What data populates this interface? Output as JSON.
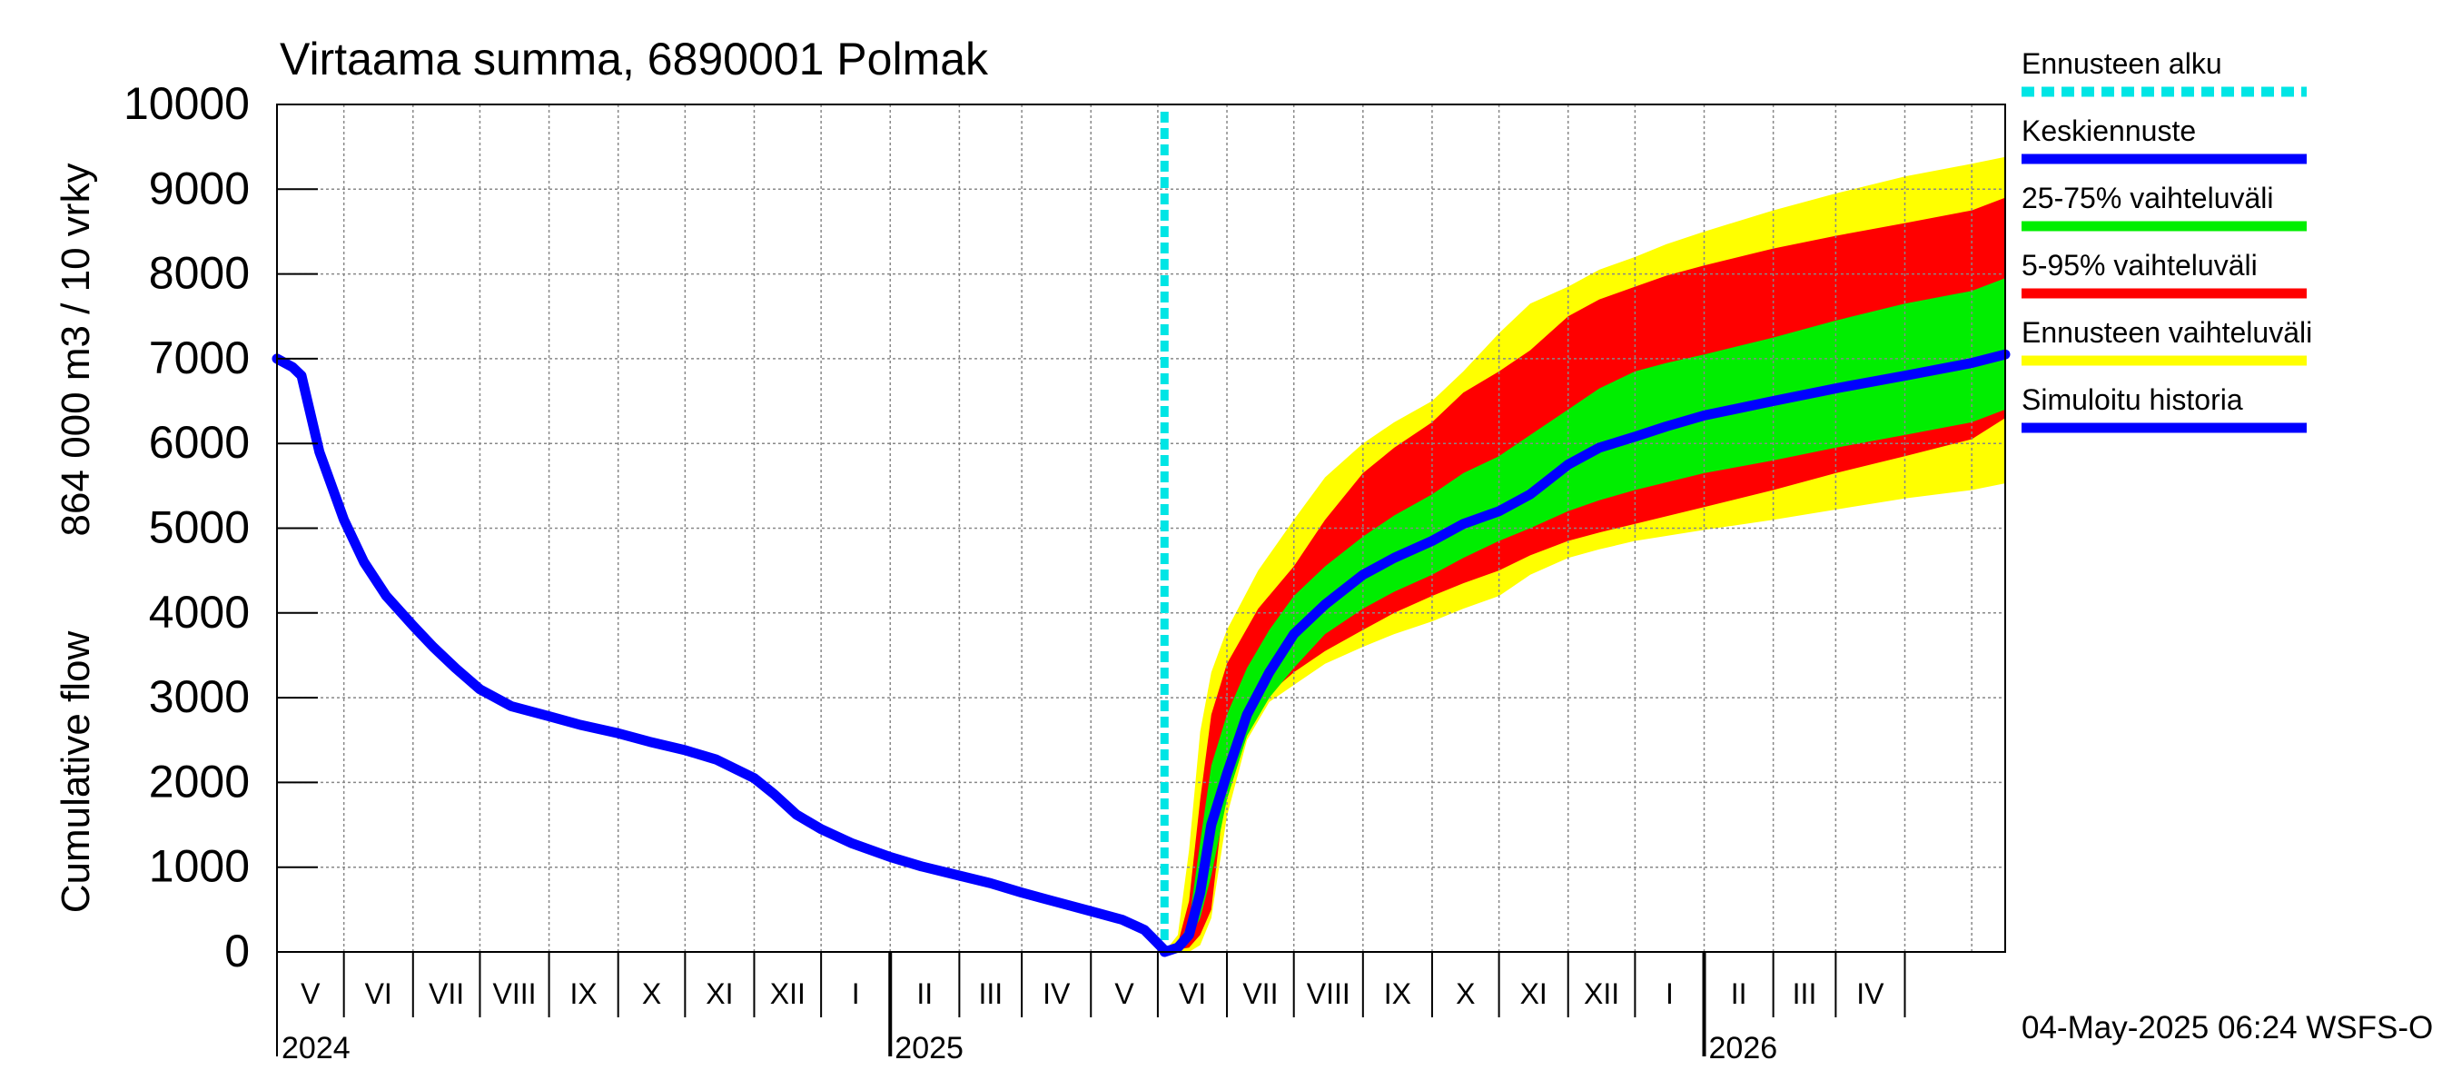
{
  "chart_data": {
    "type": "area",
    "title": "Virtaama summa, 6890001 Polmak",
    "ylabel_lines": [
      "Cumulative flow",
      "864 000 m3 / 10 vrky"
    ],
    "xlabel": "",
    "ylim": [
      0,
      10000
    ],
    "yticks": [
      0,
      1000,
      2000,
      3000,
      4000,
      5000,
      6000,
      7000,
      8000,
      9000,
      10000
    ],
    "grid": true,
    "legend_position": "right",
    "x_range": [
      "2024-04-01",
      "2026-05-16"
    ],
    "forecast_start": "2025-05-04",
    "month_labels": [
      "V",
      "VI",
      "VII",
      "VIII",
      "IX",
      "X",
      "XI",
      "XII",
      "I",
      "II",
      "III",
      "IV",
      "V",
      "VI",
      "VII",
      "VIII",
      "IX",
      "X",
      "XI",
      "XII",
      "I",
      "II",
      "III",
      "IV"
    ],
    "year_labels": [
      "2024",
      "2025",
      "2026"
    ],
    "timestamp": "04-May-2025 06:24 WSFS-O",
    "colors": {
      "forecast_start": "#00e5e5",
      "median": "#0000ff",
      "p25_75": "#00ee00",
      "p5_95": "#ff0000",
      "range": "#ffff00",
      "history": "#0000ff",
      "grid": "#888888"
    },
    "series": [
      {
        "name": "Simuloitu historia",
        "role": "history",
        "points": [
          [
            "2024-04-01",
            7000
          ],
          [
            "2024-04-08",
            6900
          ],
          [
            "2024-04-12",
            6800
          ],
          [
            "2024-04-20",
            5900
          ],
          [
            "2024-05-01",
            5100
          ],
          [
            "2024-05-10",
            4600
          ],
          [
            "2024-05-20",
            4200
          ],
          [
            "2024-06-01",
            3850
          ],
          [
            "2024-06-10",
            3600
          ],
          [
            "2024-06-20",
            3350
          ],
          [
            "2024-07-01",
            3100
          ],
          [
            "2024-07-15",
            2900
          ],
          [
            "2024-08-01",
            2780
          ],
          [
            "2024-08-15",
            2680
          ],
          [
            "2024-09-01",
            2580
          ],
          [
            "2024-09-15",
            2480
          ],
          [
            "2024-10-01",
            2380
          ],
          [
            "2024-10-15",
            2270
          ],
          [
            "2024-11-01",
            2050
          ],
          [
            "2024-11-10",
            1860
          ],
          [
            "2024-11-20",
            1620
          ],
          [
            "2024-12-01",
            1450
          ],
          [
            "2024-12-15",
            1280
          ],
          [
            "2025-01-01",
            1120
          ],
          [
            "2025-01-15",
            1010
          ],
          [
            "2025-02-01",
            900
          ],
          [
            "2025-02-15",
            810
          ],
          [
            "2025-03-01",
            700
          ],
          [
            "2025-03-15",
            600
          ],
          [
            "2025-04-01",
            480
          ],
          [
            "2025-04-15",
            380
          ],
          [
            "2025-04-25",
            260
          ],
          [
            "2025-05-04",
            20
          ]
        ]
      },
      {
        "name": "Keskiennuste",
        "role": "median",
        "points": [
          [
            "2025-05-04",
            0
          ],
          [
            "2025-05-10",
            50
          ],
          [
            "2025-05-15",
            200
          ],
          [
            "2025-05-20",
            700
          ],
          [
            "2025-05-25",
            1500
          ],
          [
            "2025-06-01",
            2100
          ],
          [
            "2025-06-10",
            2800
          ],
          [
            "2025-06-20",
            3300
          ],
          [
            "2025-07-01",
            3750
          ],
          [
            "2025-07-15",
            4100
          ],
          [
            "2025-08-01",
            4450
          ],
          [
            "2025-08-15",
            4650
          ],
          [
            "2025-09-01",
            4850
          ],
          [
            "2025-09-15",
            5050
          ],
          [
            "2025-10-01",
            5200
          ],
          [
            "2025-10-15",
            5400
          ],
          [
            "2025-11-01",
            5750
          ],
          [
            "2025-11-15",
            5950
          ],
          [
            "2025-12-01",
            6080
          ],
          [
            "2025-12-15",
            6200
          ],
          [
            "2026-01-01",
            6330
          ],
          [
            "2026-02-01",
            6500
          ],
          [
            "2026-03-01",
            6650
          ],
          [
            "2026-04-01",
            6800
          ],
          [
            "2026-05-01",
            6950
          ],
          [
            "2026-05-16",
            7050
          ]
        ]
      }
    ],
    "bands": [
      {
        "name": "Ennusteen vaihteluväli",
        "role": "range",
        "upper": [
          [
            "2025-05-04",
            0
          ],
          [
            "2025-05-10",
            200
          ],
          [
            "2025-05-15",
            1200
          ],
          [
            "2025-05-20",
            2600
          ],
          [
            "2025-05-25",
            3300
          ],
          [
            "2025-06-01",
            3800
          ],
          [
            "2025-06-15",
            4500
          ],
          [
            "2025-07-01",
            5100
          ],
          [
            "2025-07-15",
            5600
          ],
          [
            "2025-08-01",
            6000
          ],
          [
            "2025-08-15",
            6250
          ],
          [
            "2025-09-01",
            6500
          ],
          [
            "2025-09-15",
            6850
          ],
          [
            "2025-10-01",
            7300
          ],
          [
            "2025-10-15",
            7650
          ],
          [
            "2025-11-01",
            7850
          ],
          [
            "2025-11-15",
            8050
          ],
          [
            "2025-12-01",
            8200
          ],
          [
            "2025-12-15",
            8350
          ],
          [
            "2026-01-01",
            8500
          ],
          [
            "2026-02-01",
            8750
          ],
          [
            "2026-03-01",
            8950
          ],
          [
            "2026-04-01",
            9150
          ],
          [
            "2026-05-01",
            9300
          ],
          [
            "2026-05-16",
            9380
          ]
        ],
        "lower": [
          [
            "2025-05-04",
            0
          ],
          [
            "2025-05-15",
            0
          ],
          [
            "2025-05-20",
            80
          ],
          [
            "2025-05-25",
            400
          ],
          [
            "2025-06-01",
            1600
          ],
          [
            "2025-06-10",
            2500
          ],
          [
            "2025-06-20",
            2950
          ],
          [
            "2025-07-01",
            3150
          ],
          [
            "2025-07-15",
            3400
          ],
          [
            "2025-08-01",
            3600
          ],
          [
            "2025-08-15",
            3750
          ],
          [
            "2025-09-01",
            3900
          ],
          [
            "2025-09-15",
            4050
          ],
          [
            "2025-10-01",
            4200
          ],
          [
            "2025-10-15",
            4450
          ],
          [
            "2025-11-01",
            4650
          ],
          [
            "2025-11-15",
            4750
          ],
          [
            "2025-12-01",
            4850
          ],
          [
            "2026-01-01",
            4980
          ],
          [
            "2026-02-01",
            5100
          ],
          [
            "2026-03-01",
            5220
          ],
          [
            "2026-04-01",
            5350
          ],
          [
            "2026-05-01",
            5450
          ],
          [
            "2026-05-16",
            5530
          ]
        ]
      },
      {
        "name": "5-95% vaihteluväli",
        "role": "p5_95",
        "upper": [
          [
            "2025-05-04",
            0
          ],
          [
            "2025-05-10",
            100
          ],
          [
            "2025-05-15",
            600
          ],
          [
            "2025-05-20",
            1800
          ],
          [
            "2025-05-25",
            2800
          ],
          [
            "2025-06-01",
            3400
          ],
          [
            "2025-06-15",
            4050
          ],
          [
            "2025-07-01",
            4550
          ],
          [
            "2025-07-15",
            5100
          ],
          [
            "2025-08-01",
            5650
          ],
          [
            "2025-08-15",
            5950
          ],
          [
            "2025-09-01",
            6250
          ],
          [
            "2025-09-15",
            6600
          ],
          [
            "2025-10-01",
            6850
          ],
          [
            "2025-10-15",
            7100
          ],
          [
            "2025-11-01",
            7500
          ],
          [
            "2025-11-15",
            7700
          ],
          [
            "2025-12-01",
            7850
          ],
          [
            "2025-12-15",
            7980
          ],
          [
            "2026-01-01",
            8100
          ],
          [
            "2026-02-01",
            8300
          ],
          [
            "2026-03-01",
            8450
          ],
          [
            "2026-04-01",
            8600
          ],
          [
            "2026-05-01",
            8750
          ],
          [
            "2026-05-16",
            8900
          ]
        ],
        "lower": [
          [
            "2025-05-04",
            0
          ],
          [
            "2025-05-15",
            50
          ],
          [
            "2025-05-20",
            200
          ],
          [
            "2025-05-25",
            500
          ],
          [
            "2025-06-01",
            2100
          ],
          [
            "2025-06-10",
            2700
          ],
          [
            "2025-06-20",
            3050
          ],
          [
            "2025-07-01",
            3300
          ],
          [
            "2025-07-15",
            3550
          ],
          [
            "2025-08-01",
            3800
          ],
          [
            "2025-08-15",
            4000
          ],
          [
            "2025-09-01",
            4200
          ],
          [
            "2025-09-15",
            4350
          ],
          [
            "2025-10-01",
            4500
          ],
          [
            "2025-10-15",
            4680
          ],
          [
            "2025-11-01",
            4850
          ],
          [
            "2025-11-15",
            4950
          ],
          [
            "2025-12-01",
            5050
          ],
          [
            "2026-01-01",
            5250
          ],
          [
            "2026-02-01",
            5450
          ],
          [
            "2026-03-01",
            5650
          ],
          [
            "2026-04-01",
            5850
          ],
          [
            "2026-05-01",
            6050
          ],
          [
            "2026-05-16",
            6300
          ]
        ]
      },
      {
        "name": "25-75% vaihteluväli",
        "role": "p25_75",
        "upper": [
          [
            "2025-05-04",
            0
          ],
          [
            "2025-05-10",
            80
          ],
          [
            "2025-05-15",
            350
          ],
          [
            "2025-05-20",
            1300
          ],
          [
            "2025-05-25",
            2200
          ],
          [
            "2025-06-01",
            2800
          ],
          [
            "2025-06-10",
            3350
          ],
          [
            "2025-06-20",
            3800
          ],
          [
            "2025-07-01",
            4200
          ],
          [
            "2025-07-15",
            4550
          ],
          [
            "2025-08-01",
            4900
          ],
          [
            "2025-08-15",
            5150
          ],
          [
            "2025-09-01",
            5400
          ],
          [
            "2025-09-15",
            5650
          ],
          [
            "2025-10-01",
            5850
          ],
          [
            "2025-10-15",
            6100
          ],
          [
            "2025-11-01",
            6400
          ],
          [
            "2025-11-15",
            6650
          ],
          [
            "2025-12-01",
            6850
          ],
          [
            "2025-12-15",
            6950
          ],
          [
            "2026-01-01",
            7050
          ],
          [
            "2026-02-01",
            7250
          ],
          [
            "2026-03-01",
            7450
          ],
          [
            "2026-04-01",
            7650
          ],
          [
            "2026-05-01",
            7800
          ],
          [
            "2026-05-16",
            7950
          ]
        ],
        "lower": [
          [
            "2025-05-04",
            0
          ],
          [
            "2025-05-15",
            150
          ],
          [
            "2025-05-20",
            400
          ],
          [
            "2025-05-25",
            900
          ],
          [
            "2025-06-01",
            1800
          ],
          [
            "2025-06-10",
            2550
          ],
          [
            "2025-06-20",
            3000
          ],
          [
            "2025-07-01",
            3350
          ],
          [
            "2025-07-15",
            3750
          ],
          [
            "2025-08-01",
            4050
          ],
          [
            "2025-08-15",
            4250
          ],
          [
            "2025-09-01",
            4450
          ],
          [
            "2025-09-15",
            4650
          ],
          [
            "2025-10-01",
            4850
          ],
          [
            "2025-10-15",
            5000
          ],
          [
            "2025-11-01",
            5200
          ],
          [
            "2025-11-15",
            5330
          ],
          [
            "2025-12-01",
            5450
          ],
          [
            "2026-01-01",
            5650
          ],
          [
            "2026-02-01",
            5800
          ],
          [
            "2026-03-01",
            5950
          ],
          [
            "2026-04-01",
            6100
          ],
          [
            "2026-05-01",
            6250
          ],
          [
            "2026-05-16",
            6400
          ]
        ]
      }
    ],
    "legend": [
      {
        "label": "Ennusteen alku",
        "role": "forecast_start",
        "style": "dashed"
      },
      {
        "label": "Keskiennuste",
        "role": "median",
        "style": "solid"
      },
      {
        "label": "25-75% vaihteluväli",
        "role": "p25_75",
        "style": "solid"
      },
      {
        "label": "5-95% vaihteluväli",
        "role": "p5_95",
        "style": "solid"
      },
      {
        "label": "Ennusteen vaihteluväli",
        "role": "range",
        "style": "solid"
      },
      {
        "label": "Simuloitu historia",
        "role": "history",
        "style": "solid"
      }
    ]
  }
}
